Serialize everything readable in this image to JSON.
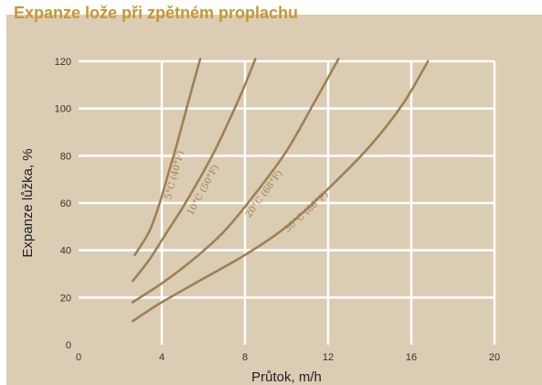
{
  "chart_data": {
    "type": "line",
    "title": "Expanze lože při zpětném proplachu",
    "xlabel": "Průtok, m/h",
    "ylabel": "Expanze lůžka, %",
    "xlim": [
      0,
      20
    ],
    "ylim": [
      0,
      120
    ],
    "xticks": [
      0,
      4,
      8,
      12,
      16,
      20
    ],
    "yticks": [
      0,
      20,
      40,
      60,
      80,
      100,
      120
    ],
    "grid": true,
    "line_color": "#a08050",
    "series": [
      {
        "name": "5°C (40°F)",
        "x": [
          2.7,
          3.4,
          3.9,
          4.3,
          4.7,
          5.1,
          5.5,
          5.85
        ],
        "y": [
          38,
          48,
          60,
          72,
          84,
          97,
          110,
          121
        ]
      },
      {
        "name": "10°C (50°F)",
        "x": [
          2.6,
          3.4,
          4.2,
          5.0,
          5.8,
          6.6,
          7.4,
          8.0,
          8.5
        ],
        "y": [
          27,
          36,
          47,
          58,
          70,
          83,
          98,
          110,
          121
        ]
      },
      {
        "name": "20°C (68°F)",
        "x": [
          2.6,
          4.0,
          5.5,
          7.0,
          8.5,
          10.0,
          11.3,
          12.5
        ],
        "y": [
          18,
          26,
          36,
          48,
          64,
          82,
          102,
          121
        ]
      },
      {
        "name": "30°C (86°F)",
        "x": [
          2.6,
          4.0,
          6.0,
          8.0,
          10.0,
          12.0,
          14.0,
          15.6,
          16.8
        ],
        "y": [
          10,
          18,
          28,
          38,
          50,
          66,
          84,
          102,
          120
        ]
      }
    ]
  }
}
